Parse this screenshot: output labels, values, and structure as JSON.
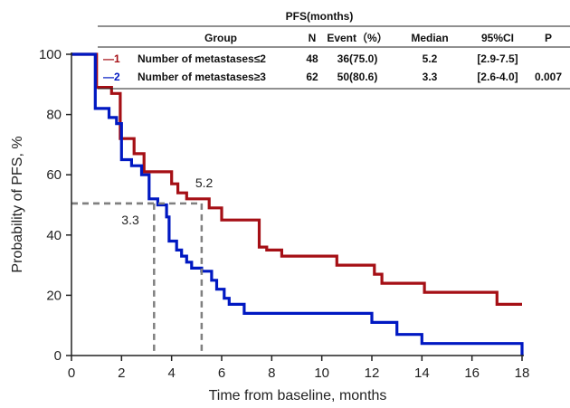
{
  "chart_data": {
    "type": "line",
    "step": true,
    "xlabel": "Time from baseline, months",
    "ylabel": "Probability of PFS, %",
    "xlim": [
      0,
      18
    ],
    "ylim": [
      0,
      100
    ],
    "xticks": [
      0,
      2,
      4,
      6,
      8,
      10,
      12,
      14,
      16,
      18
    ],
    "yticks": [
      0,
      20,
      40,
      60,
      80,
      100
    ],
    "grid": false,
    "series": [
      {
        "name": "Number of metastases≤2",
        "color": "#a50f15",
        "points": [
          [
            0,
            100
          ],
          [
            1.0,
            100
          ],
          [
            1.0,
            89
          ],
          [
            1.6,
            89
          ],
          [
            1.6,
            87
          ],
          [
            1.95,
            87
          ],
          [
            1.95,
            72
          ],
          [
            2.5,
            72
          ],
          [
            2.5,
            67
          ],
          [
            2.9,
            67
          ],
          [
            2.9,
            61
          ],
          [
            4.0,
            61
          ],
          [
            4.0,
            57
          ],
          [
            4.25,
            57
          ],
          [
            4.25,
            54
          ],
          [
            4.6,
            54
          ],
          [
            4.6,
            52
          ],
          [
            5.5,
            52
          ],
          [
            5.5,
            49
          ],
          [
            6.0,
            49
          ],
          [
            6.0,
            45
          ],
          [
            7.5,
            45
          ],
          [
            7.5,
            36
          ],
          [
            7.8,
            36
          ],
          [
            7.8,
            35
          ],
          [
            8.4,
            35
          ],
          [
            8.4,
            33
          ],
          [
            10.6,
            33
          ],
          [
            10.6,
            30
          ],
          [
            12.1,
            30
          ],
          [
            12.1,
            27
          ],
          [
            12.4,
            27
          ],
          [
            12.4,
            24
          ],
          [
            14.1,
            24
          ],
          [
            14.1,
            21
          ],
          [
            17.0,
            21
          ],
          [
            17.0,
            17
          ],
          [
            18.0,
            17
          ]
        ]
      },
      {
        "name": "Number of metastases≥3",
        "color": "#0018c2",
        "points": [
          [
            0,
            100
          ],
          [
            0.95,
            100
          ],
          [
            0.95,
            82
          ],
          [
            1.5,
            82
          ],
          [
            1.5,
            79
          ],
          [
            1.8,
            79
          ],
          [
            1.8,
            77
          ],
          [
            2.0,
            77
          ],
          [
            2.0,
            65
          ],
          [
            2.4,
            65
          ],
          [
            2.4,
            63
          ],
          [
            2.8,
            63
          ],
          [
            2.8,
            60
          ],
          [
            3.1,
            60
          ],
          [
            3.1,
            52
          ],
          [
            3.45,
            52
          ],
          [
            3.45,
            50
          ],
          [
            3.8,
            50
          ],
          [
            3.8,
            46
          ],
          [
            3.9,
            46
          ],
          [
            3.9,
            38
          ],
          [
            4.2,
            38
          ],
          [
            4.2,
            35
          ],
          [
            4.4,
            35
          ],
          [
            4.4,
            33
          ],
          [
            4.6,
            33
          ],
          [
            4.6,
            31
          ],
          [
            4.8,
            31
          ],
          [
            4.8,
            29
          ],
          [
            5.2,
            29
          ],
          [
            5.2,
            28
          ],
          [
            5.6,
            28
          ],
          [
            5.6,
            25
          ],
          [
            5.8,
            25
          ],
          [
            5.8,
            22
          ],
          [
            6.1,
            22
          ],
          [
            6.1,
            19
          ],
          [
            6.3,
            19
          ],
          [
            6.3,
            17
          ],
          [
            6.9,
            17
          ],
          [
            6.9,
            14
          ],
          [
            12.0,
            14
          ],
          [
            12.0,
            11
          ],
          [
            13.0,
            11
          ],
          [
            13.0,
            7
          ],
          [
            14.0,
            7
          ],
          [
            14.0,
            4
          ],
          [
            18.0,
            4
          ],
          [
            18.0,
            0
          ]
        ]
      }
    ],
    "reference_lines": [
      {
        "label": "3.3",
        "x": 3.3,
        "y": 50.5
      },
      {
        "label": "5.2",
        "x": 5.2,
        "y": 50.5
      }
    ],
    "inset_table": {
      "title": "PFS(months)",
      "headers": [
        "Group",
        "N",
        "Event（%）",
        "Median",
        "95%CI",
        "P"
      ],
      "rows": [
        {
          "marker": "—1",
          "group": "Number of metastases≤2",
          "n": "48",
          "event": "36(75.0)",
          "median": "5.2",
          "ci": "[2.9-7.5]",
          "p": "",
          "color": "#a50f15"
        },
        {
          "marker": "—2",
          "group": "Number of metastases≥3",
          "n": "62",
          "event": "50(80.6)",
          "median": "3.3",
          "ci": "[2.6-4.0]",
          "p": "0.007",
          "color": "#0018c2"
        }
      ]
    }
  }
}
